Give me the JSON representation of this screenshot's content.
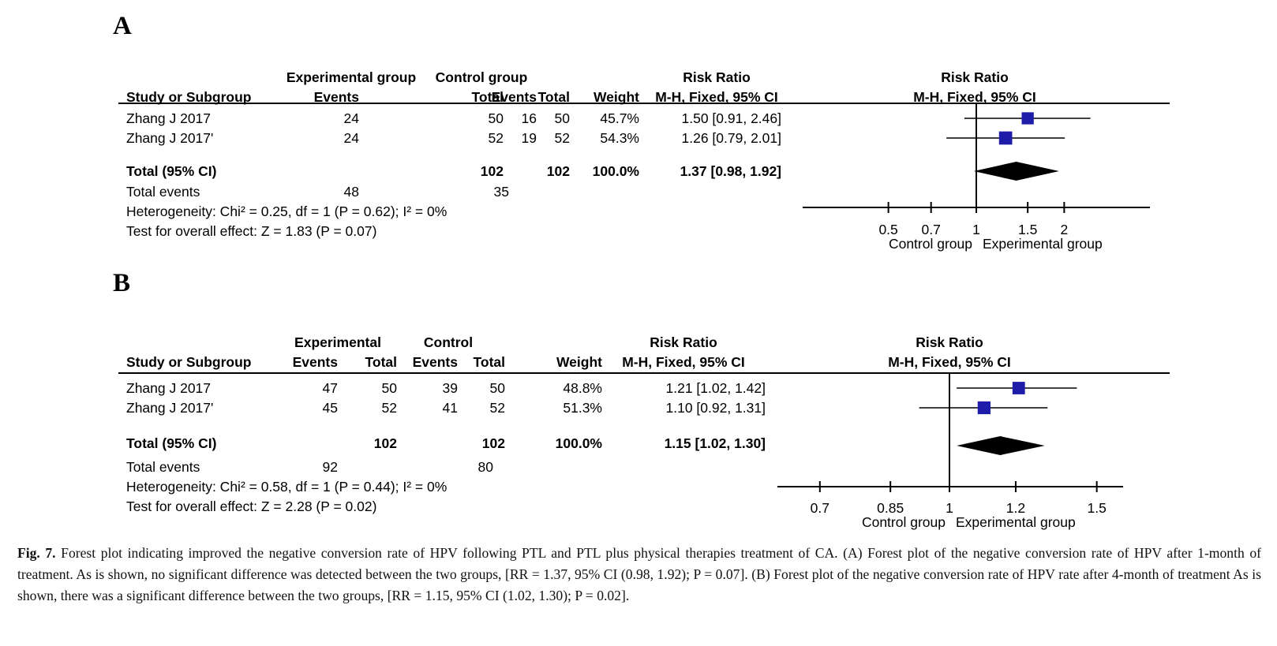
{
  "figure": {
    "caption_label": "Fig. 7.",
    "caption_text": "Forest plot indicating improved the negative conversion rate of HPV following PTL and PTL plus physical therapies treatment of CA. (A) Forest plot of the negative conversion rate of HPV after 1-month of treatment. As is shown, no significant difference was detected between the two groups, [RR = 1.37, 95% CI (0.98, 1.92); P = 0.07]. (B) Forest plot of the negative conversion rate of HPV rate after 4-month of treatment As is shown, there was a significant difference between the two groups, [RR = 1.15, 95% CI (1.02, 1.30); P = 0.02]."
  },
  "colors": {
    "square": "#1d1da9",
    "diamond": "#000000",
    "line": "#000000",
    "text": "#000000",
    "background": "#ffffff"
  },
  "panels": [
    {
      "label": "A",
      "table": {
        "group_headers": {
          "experimental": "Experimental group",
          "control": "Control group",
          "risk_ratio": "Risk Ratio"
        },
        "col_headers": {
          "study": "Study or Subgroup",
          "events_exp": "Events",
          "total_exp": "Total",
          "events_ctrl": "Events",
          "total_ctrl": "Total",
          "weight": "Weight",
          "rr_ci": "M-H, Fixed, 95% CI"
        },
        "rows": [
          {
            "study": "Zhang J 2017",
            "events_exp": "24",
            "total_exp": "50",
            "events_ctrl": "16",
            "total_ctrl": "50",
            "weight": "45.7%",
            "rr_ci": "1.50 [0.91, 2.46]"
          },
          {
            "study": "Zhang J 2017'",
            "events_exp": "24",
            "total_exp": "52",
            "events_ctrl": "19",
            "total_ctrl": "52",
            "weight": "54.3%",
            "rr_ci": "1.26 [0.79, 2.01]"
          }
        ],
        "total_row": {
          "label": "Total (95% CI)",
          "total_exp": "102",
          "total_ctrl": "102",
          "weight": "100.0%",
          "rr_ci": "1.37 [0.98, 1.92]"
        },
        "total_events": {
          "label": "Total events",
          "exp": "48",
          "ctrl": "35"
        },
        "heterogeneity": "Heterogeneity: Chi² = 0.25, df = 1 (P = 0.62); I² = 0%",
        "overall_effect": "Test for overall effect: Z = 1.83 (P = 0.07)"
      },
      "plot": {
        "header_line1": "Risk Ratio",
        "header_line2": "M-H, Fixed, 95% CI",
        "axis_label_left": "Control group",
        "axis_label_right": "Experimental group"
      }
    },
    {
      "label": "B",
      "table": {
        "group_headers": {
          "experimental": "Experimental",
          "control": "Control",
          "risk_ratio": "Risk Ratio"
        },
        "col_headers": {
          "study": "Study or Subgroup",
          "events_exp": "Events",
          "total_exp": "Total",
          "events_ctrl": "Events",
          "total_ctrl": "Total",
          "weight": "Weight",
          "rr_ci": "M-H, Fixed, 95% CI"
        },
        "rows": [
          {
            "study": "Zhang J 2017",
            "events_exp": "47",
            "total_exp": "50",
            "events_ctrl": "39",
            "total_ctrl": "50",
            "weight": "48.8%",
            "rr_ci": "1.21 [1.02, 1.42]"
          },
          {
            "study": "Zhang J 2017'",
            "events_exp": "45",
            "total_exp": "52",
            "events_ctrl": "41",
            "total_ctrl": "52",
            "weight": "51.3%",
            "rr_ci": "1.10 [0.92, 1.31]"
          }
        ],
        "total_row": {
          "label": "Total (95% CI)",
          "total_exp": "102",
          "total_ctrl": "102",
          "weight": "100.0%",
          "rr_ci": "1.15 [1.02, 1.30]"
        },
        "total_events": {
          "label": "Total events",
          "exp": "92",
          "ctrl": "80"
        },
        "heterogeneity": "Heterogeneity: Chi² = 0.58, df = 1 (P = 0.44); I² = 0%",
        "overall_effect": "Test for overall effect: Z = 2.28 (P = 0.02)"
      },
      "plot": {
        "header_line1": "Risk Ratio",
        "header_line2": "M-H, Fixed, 95% CI",
        "axis_label_left": "Control group",
        "axis_label_right": "Experimental group"
      }
    }
  ],
  "chart_data": [
    {
      "type": "forest",
      "panel": "A",
      "title": "Risk Ratio M-H, Fixed, 95% CI",
      "x_scale": "log",
      "x_ticks": [
        0.5,
        0.7,
        1,
        1.5,
        2
      ],
      "xlim": [
        0.25,
        3.9
      ],
      "null_line": 1,
      "studies": [
        {
          "name": "Zhang J 2017",
          "rr": 1.5,
          "ci_low": 0.91,
          "ci_high": 2.46,
          "weight_pct": 45.7
        },
        {
          "name": "Zhang J 2017'",
          "rr": 1.26,
          "ci_low": 0.79,
          "ci_high": 2.01,
          "weight_pct": 54.3
        }
      ],
      "total": {
        "rr": 1.37,
        "ci_low": 0.98,
        "ci_high": 1.92
      },
      "legend_left": "Control group",
      "legend_right": "Experimental group"
    },
    {
      "type": "forest",
      "panel": "B",
      "title": "Risk Ratio M-H, Fixed, 95% CI",
      "x_scale": "log",
      "x_ticks": [
        0.7,
        0.85,
        1,
        1.2,
        1.5
      ],
      "xlim": [
        0.62,
        1.61
      ],
      "null_line": 1,
      "studies": [
        {
          "name": "Zhang J 2017",
          "rr": 1.21,
          "ci_low": 1.02,
          "ci_high": 1.42,
          "weight_pct": 48.8
        },
        {
          "name": "Zhang J 2017'",
          "rr": 1.1,
          "ci_low": 0.92,
          "ci_high": 1.31,
          "weight_pct": 51.3
        }
      ],
      "total": {
        "rr": 1.15,
        "ci_low": 1.02,
        "ci_high": 1.3
      },
      "legend_left": "Control group",
      "legend_right": "Experimental group"
    }
  ]
}
